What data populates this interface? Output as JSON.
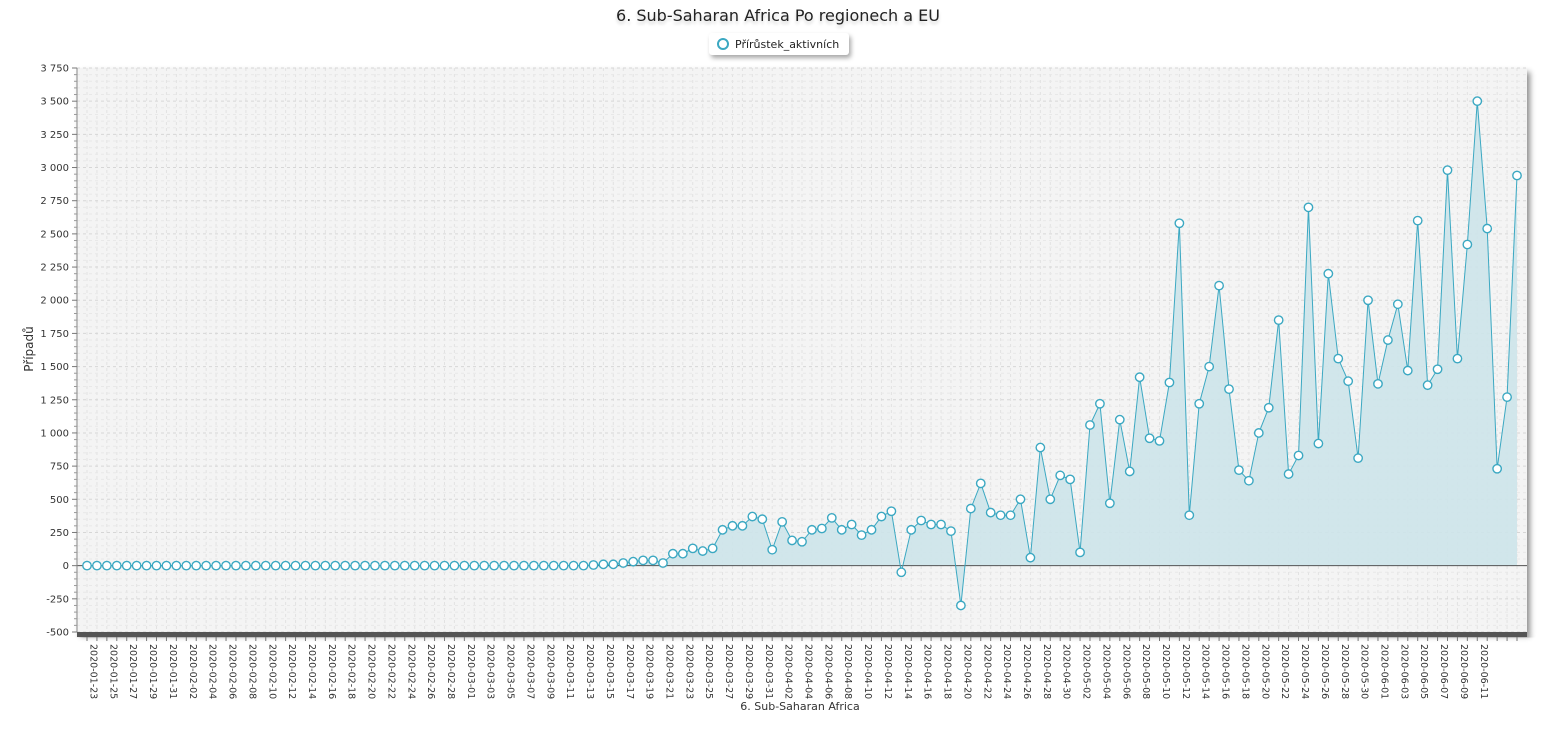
{
  "chart_data": {
    "type": "area",
    "title": "6. Sub-Saharan Africa Po regionech a EU",
    "xlabel": "6. Sub-Saharan Africa",
    "ylabel": "Případů",
    "ylim": [
      -500,
      3750
    ],
    "y_ticks": [
      -500,
      -250,
      0,
      250,
      500,
      750,
      1000,
      1250,
      1500,
      1750,
      2000,
      2250,
      2500,
      2750,
      3000,
      3250,
      3500,
      3750
    ],
    "y_tick_labels": [
      "-500",
      "-250",
      "0",
      "250",
      "500",
      "750",
      "1 000",
      "1 250",
      "1 500",
      "1 750",
      "2 000",
      "2 250",
      "2 500",
      "2 750",
      "3 000",
      "3 250",
      "3 500",
      "3 750"
    ],
    "grid": true,
    "legend_position": "top-center",
    "x_tick_labels": [
      "2020-01-23",
      "2020-01-25",
      "2020-01-27",
      "2020-01-29",
      "2020-01-31",
      "2020-02-02",
      "2020-02-04",
      "2020-02-06",
      "2020-02-08",
      "2020-02-10",
      "2020-02-12",
      "2020-02-14",
      "2020-02-16",
      "2020-02-18",
      "2020-02-20",
      "2020-02-22",
      "2020-02-24",
      "2020-02-26",
      "2020-02-28",
      "2020-03-01",
      "2020-03-03",
      "2020-03-05",
      "2020-03-07",
      "2020-03-09",
      "2020-03-11",
      "2020-03-13",
      "2020-03-15",
      "2020-03-17",
      "2020-03-19",
      "2020-03-21",
      "2020-03-23",
      "2020-03-25",
      "2020-03-27",
      "2020-03-29",
      "2020-03-31",
      "2020-04-02",
      "2020-04-04",
      "2020-04-06",
      "2020-04-08",
      "2020-04-10",
      "2020-04-12",
      "2020-04-14",
      "2020-04-16",
      "2020-04-18",
      "2020-04-20",
      "2020-04-22",
      "2020-04-24",
      "2020-04-26",
      "2020-04-28",
      "2020-04-30",
      "2020-05-02",
      "2020-05-04",
      "2020-05-06",
      "2020-05-08",
      "2020-05-10",
      "2020-05-12",
      "2020-05-14",
      "2020-05-16",
      "2020-05-18",
      "2020-05-20",
      "2020-05-22",
      "2020-05-24",
      "2020-05-26",
      "2020-05-28",
      "2020-05-30",
      "2020-06-01",
      "2020-06-03",
      "2020-06-05",
      "2020-06-07",
      "2020-06-09",
      "2020-06-11"
    ],
    "series": [
      {
        "name": "Přírůstek_aktivních",
        "color": "#3ba8c2",
        "fill": "#cde4ea",
        "start_date": "2020-01-23",
        "values": [
          0,
          0,
          0,
          0,
          0,
          0,
          0,
          0,
          0,
          0,
          0,
          0,
          0,
          0,
          0,
          0,
          0,
          0,
          0,
          0,
          0,
          0,
          0,
          0,
          0,
          0,
          0,
          0,
          0,
          0,
          0,
          0,
          0,
          0,
          0,
          0,
          0,
          0,
          0,
          0,
          0,
          0,
          0,
          0,
          0,
          0,
          0,
          0,
          0,
          0,
          0,
          5,
          10,
          10,
          20,
          30,
          40,
          40,
          20,
          90,
          90,
          130,
          110,
          130,
          270,
          300,
          300,
          370,
          350,
          120,
          330,
          190,
          180,
          270,
          280,
          360,
          270,
          310,
          230,
          270,
          370,
          410,
          -50,
          270,
          340,
          310,
          310,
          260,
          -300,
          430,
          620,
          400,
          380,
          380,
          500,
          60,
          890,
          500,
          680,
          650,
          100,
          1060,
          1220,
          470,
          1100,
          710,
          1420,
          960,
          940,
          1380,
          2580,
          380,
          1220,
          1500,
          2110,
          1330,
          720,
          640,
          1000,
          1190,
          1850,
          690,
          830,
          2700,
          920,
          2200,
          1560,
          1390,
          810,
          2000,
          1370,
          1700,
          1970,
          1470,
          2600,
          1360,
          1480,
          2980,
          1560,
          2420,
          3500,
          2540,
          730,
          1270,
          2940
        ]
      }
    ]
  }
}
